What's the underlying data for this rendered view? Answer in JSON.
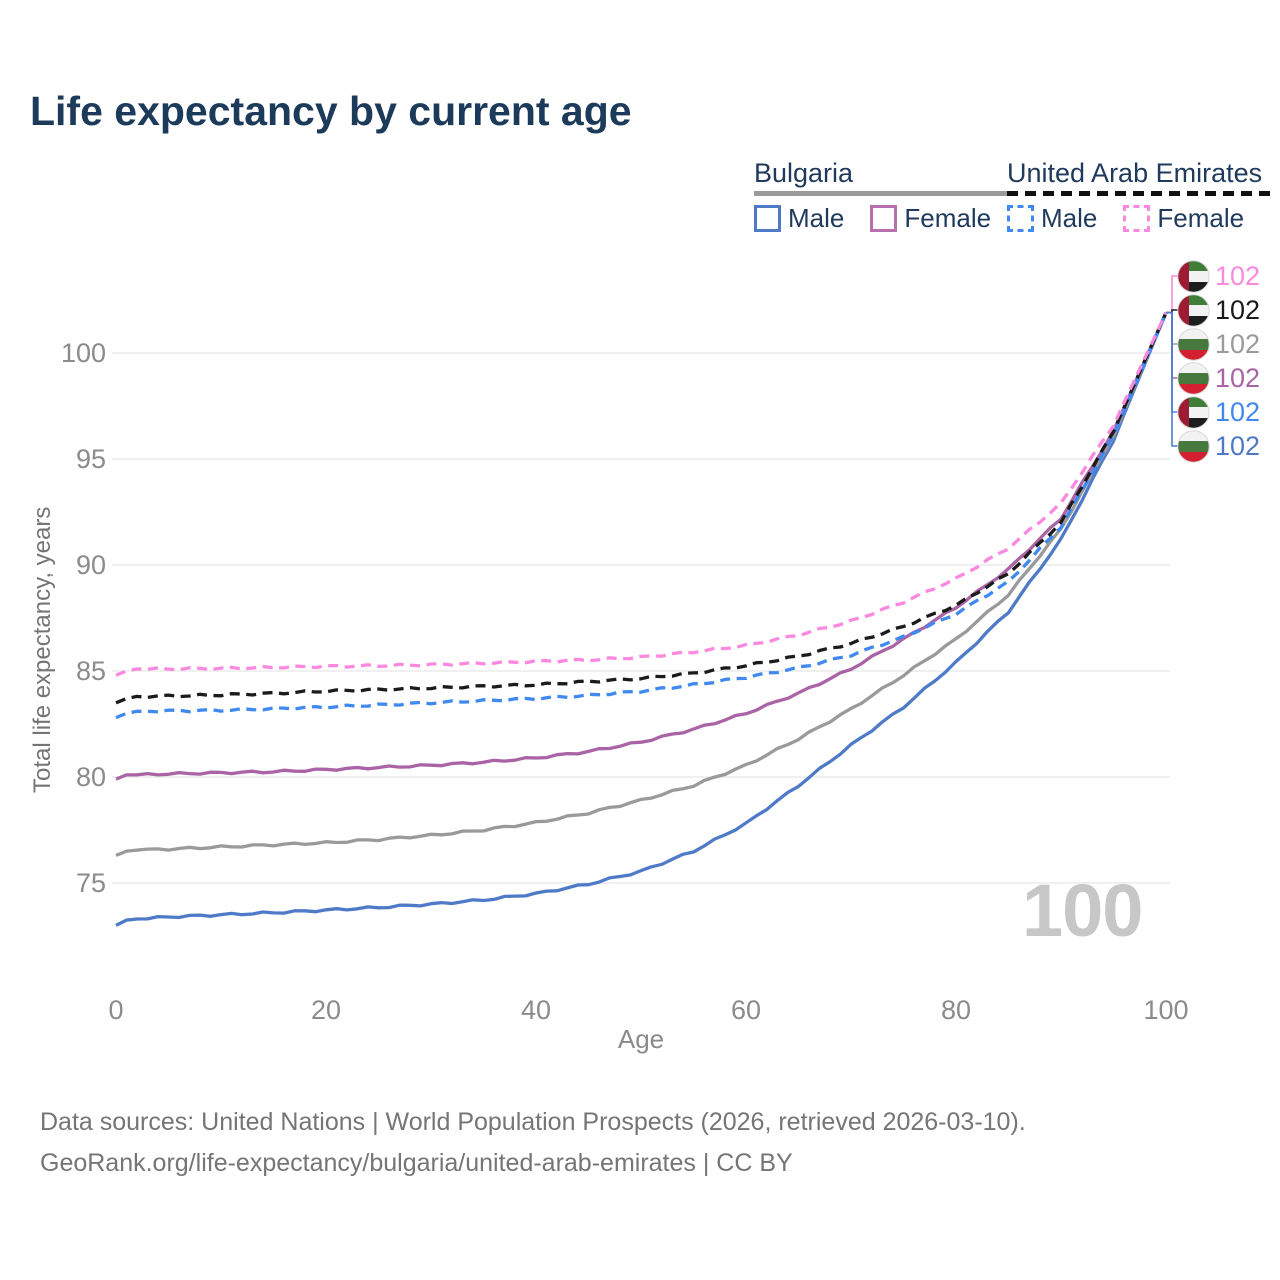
{
  "title": "Life expectancy by current age",
  "legend": {
    "groups": [
      {
        "name": "Bulgaria",
        "underline_style": "solid",
        "underline_color": "#9a9a9a",
        "items": [
          {
            "label": "Male",
            "color": "#4f7ac8",
            "dashed": false
          },
          {
            "label": "Female",
            "color": "#b76fae",
            "dashed": false
          }
        ]
      },
      {
        "name": "United Arab Emirates",
        "underline_style": "dashed",
        "underline_color": "#111111",
        "items": [
          {
            "label": "Male",
            "color": "#4089f0",
            "dashed": true
          },
          {
            "label": "Female",
            "color": "#fb89e0",
            "dashed": true
          }
        ]
      }
    ]
  },
  "chart_data": {
    "type": "line",
    "title": "Life expectancy by current age",
    "xlabel": "Age",
    "ylabel": "Total life expectancy, years",
    "x_ticks": [
      0,
      20,
      40,
      60,
      80,
      100
    ],
    "y_ticks": [
      75,
      80,
      85,
      90,
      95,
      100
    ],
    "xlim": [
      0,
      100
    ],
    "ylim": [
      72.5,
      102.5
    ],
    "grid": "horizontal",
    "legend_position": "top-right",
    "series": [
      {
        "name": "Bulgaria Male",
        "color": "#4f7ac8",
        "dashed": false,
        "end_value": 102,
        "points": [
          [
            0,
            73.0
          ],
          [
            1,
            73.25
          ],
          [
            2,
            73.3
          ],
          [
            5,
            73.4
          ],
          [
            10,
            73.5
          ],
          [
            15,
            73.6
          ],
          [
            20,
            73.72
          ],
          [
            25,
            73.85
          ],
          [
            30,
            74.0
          ],
          [
            35,
            74.2
          ],
          [
            40,
            74.5
          ],
          [
            45,
            74.95
          ],
          [
            50,
            75.55
          ],
          [
            55,
            76.5
          ],
          [
            60,
            77.8
          ],
          [
            65,
            79.6
          ],
          [
            70,
            81.5
          ],
          [
            75,
            83.3
          ],
          [
            80,
            85.4
          ],
          [
            85,
            87.8
          ],
          [
            90,
            91.2
          ],
          [
            95,
            95.9
          ],
          [
            100,
            101.9
          ]
        ]
      },
      {
        "name": "Bulgaria",
        "color": "#9a9a9a",
        "dashed": false,
        "end_value": 102,
        "points": [
          [
            0,
            76.3
          ],
          [
            1,
            76.5
          ],
          [
            2,
            76.55
          ],
          [
            5,
            76.6
          ],
          [
            10,
            76.7
          ],
          [
            15,
            76.8
          ],
          [
            20,
            76.9
          ],
          [
            25,
            77.05
          ],
          [
            30,
            77.25
          ],
          [
            35,
            77.5
          ],
          [
            40,
            77.85
          ],
          [
            45,
            78.3
          ],
          [
            50,
            78.9
          ],
          [
            55,
            79.6
          ],
          [
            60,
            80.55
          ],
          [
            65,
            81.8
          ],
          [
            70,
            83.2
          ],
          [
            75,
            84.8
          ],
          [
            80,
            86.5
          ],
          [
            85,
            88.6
          ],
          [
            90,
            91.7
          ],
          [
            95,
            96.1
          ],
          [
            100,
            101.9
          ]
        ]
      },
      {
        "name": "Bulgaria Female",
        "color": "#aa64a5",
        "dashed": false,
        "end_value": 102,
        "points": [
          [
            0,
            79.9
          ],
          [
            1,
            80.1
          ],
          [
            2,
            80.1
          ],
          [
            5,
            80.15
          ],
          [
            10,
            80.2
          ],
          [
            15,
            80.25
          ],
          [
            20,
            80.35
          ],
          [
            25,
            80.45
          ],
          [
            30,
            80.55
          ],
          [
            35,
            80.7
          ],
          [
            40,
            80.9
          ],
          [
            45,
            81.2
          ],
          [
            50,
            81.65
          ],
          [
            55,
            82.25
          ],
          [
            60,
            83.0
          ],
          [
            65,
            83.95
          ],
          [
            70,
            85.1
          ],
          [
            75,
            86.5
          ],
          [
            80,
            88.0
          ],
          [
            85,
            89.8
          ],
          [
            90,
            92.2
          ],
          [
            95,
            96.3
          ],
          [
            100,
            101.9
          ]
        ]
      },
      {
        "name": "United Arab Emirates Male",
        "color": "#4089f0",
        "dashed": true,
        "end_value": 102,
        "points": [
          [
            0,
            82.8
          ],
          [
            1,
            83.0
          ],
          [
            2,
            83.1
          ],
          [
            5,
            83.12
          ],
          [
            10,
            83.15
          ],
          [
            15,
            83.22
          ],
          [
            20,
            83.3
          ],
          [
            25,
            83.4
          ],
          [
            30,
            83.5
          ],
          [
            35,
            83.6
          ],
          [
            40,
            83.7
          ],
          [
            45,
            83.85
          ],
          [
            50,
            84.05
          ],
          [
            55,
            84.35
          ],
          [
            60,
            84.7
          ],
          [
            65,
            85.15
          ],
          [
            70,
            85.75
          ],
          [
            75,
            86.6
          ],
          [
            80,
            87.7
          ],
          [
            85,
            89.2
          ],
          [
            90,
            91.8
          ],
          [
            95,
            96.1
          ],
          [
            100,
            101.9
          ]
        ]
      },
      {
        "name": "United Arab Emirates",
        "color": "#1b1b1b",
        "dashed": true,
        "end_value": 102,
        "points": [
          [
            0,
            83.5
          ],
          [
            1,
            83.7
          ],
          [
            2,
            83.8
          ],
          [
            5,
            83.82
          ],
          [
            10,
            83.87
          ],
          [
            15,
            83.95
          ],
          [
            20,
            84.05
          ],
          [
            25,
            84.12
          ],
          [
            30,
            84.2
          ],
          [
            35,
            84.28
          ],
          [
            40,
            84.35
          ],
          [
            45,
            84.5
          ],
          [
            50,
            84.65
          ],
          [
            55,
            84.9
          ],
          [
            60,
            85.25
          ],
          [
            65,
            85.7
          ],
          [
            70,
            86.3
          ],
          [
            75,
            87.1
          ],
          [
            80,
            88.1
          ],
          [
            85,
            89.6
          ],
          [
            90,
            92.0
          ],
          [
            95,
            96.3
          ],
          [
            100,
            101.9
          ]
        ]
      },
      {
        "name": "United Arab Emirates Female",
        "color": "#fb89e0",
        "dashed": true,
        "end_value": 102,
        "points": [
          [
            0,
            84.8
          ],
          [
            1,
            85.0
          ],
          [
            2,
            85.1
          ],
          [
            5,
            85.1
          ],
          [
            10,
            85.12
          ],
          [
            15,
            85.17
          ],
          [
            20,
            85.22
          ],
          [
            25,
            85.25
          ],
          [
            30,
            85.3
          ],
          [
            35,
            85.37
          ],
          [
            40,
            85.45
          ],
          [
            45,
            85.52
          ],
          [
            50,
            85.65
          ],
          [
            55,
            85.9
          ],
          [
            60,
            86.2
          ],
          [
            65,
            86.7
          ],
          [
            70,
            87.35
          ],
          [
            75,
            88.25
          ],
          [
            80,
            89.35
          ],
          [
            85,
            90.8
          ],
          [
            90,
            92.9
          ],
          [
            95,
            96.6
          ],
          [
            100,
            101.9
          ]
        ]
      }
    ]
  },
  "endpoints": [
    {
      "series": "United Arab Emirates Female",
      "flag": "ae",
      "value": "102",
      "color": "#fb89e0"
    },
    {
      "series": "United Arab Emirates",
      "flag": "ae",
      "value": "102",
      "color": "#1b1b1b"
    },
    {
      "series": "Bulgaria",
      "flag": "bg",
      "value": "102",
      "color": "#9a9a9a"
    },
    {
      "series": "Bulgaria Female",
      "flag": "bg",
      "value": "102",
      "color": "#aa64a5"
    },
    {
      "series": "United Arab Emirates Male",
      "flag": "ae",
      "value": "102",
      "color": "#4089f0"
    },
    {
      "series": "Bulgaria Male",
      "flag": "bg",
      "value": "102",
      "color": "#4f7ac8"
    }
  ],
  "flag_colors": {
    "bg": {
      "stripes": [
        "#f2f2f2",
        "#47793f",
        "#d41f30"
      ]
    },
    "ae": {
      "band": "#9d1b33",
      "stripes": [
        "#3f7d39",
        "#f2f2f2",
        "#1d1d1d"
      ]
    }
  },
  "watermark": "100",
  "footer": {
    "line1": "Data sources: United Nations | World Population Prospects (2026, retrieved 2026-03-10).",
    "line2": "GeoRank.org/life-expectancy/bulgaria/united-arab-emirates | CC BY"
  }
}
